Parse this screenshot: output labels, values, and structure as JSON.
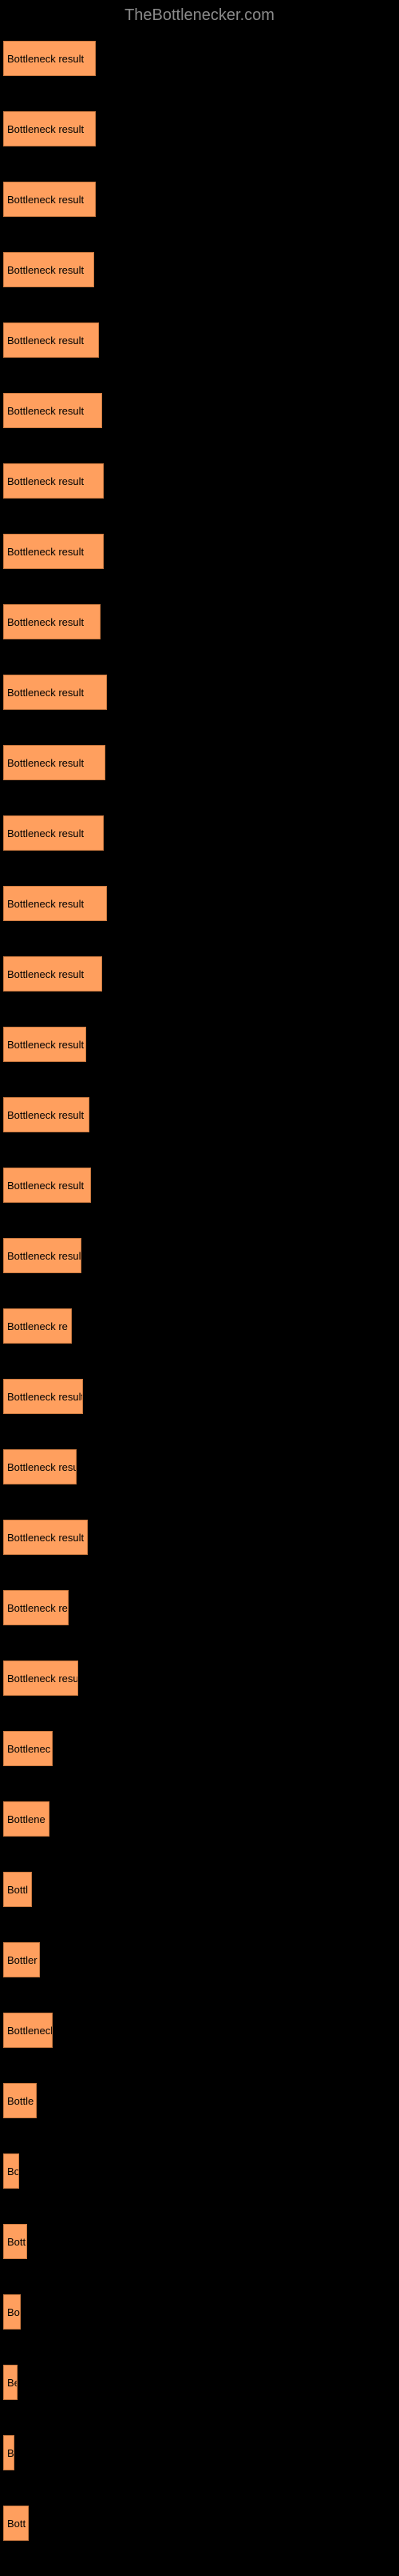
{
  "header": {
    "title": "TheBottlenecker.com"
  },
  "chart": {
    "type": "bar",
    "bar_color": "#ff9f5e",
    "bar_border_color": "#cc7a40",
    "background_color": "#000000",
    "label_color": "#000000",
    "label_fontsize": 13,
    "max_width": 500,
    "bars": [
      {
        "label": "Bottleneck result",
        "width": 116
      },
      {
        "label": "Bottleneck result",
        "width": 116
      },
      {
        "label": "Bottleneck result",
        "width": 116
      },
      {
        "label": "Bottleneck result",
        "width": 114
      },
      {
        "label": "Bottleneck result",
        "width": 120
      },
      {
        "label": "Bottleneck result",
        "width": 124
      },
      {
        "label": "Bottleneck result",
        "width": 126
      },
      {
        "label": "Bottleneck result",
        "width": 126
      },
      {
        "label": "Bottleneck result",
        "width": 122
      },
      {
        "label": "Bottleneck result",
        "width": 130
      },
      {
        "label": "Bottleneck result",
        "width": 128
      },
      {
        "label": "Bottleneck result",
        "width": 126
      },
      {
        "label": "Bottleneck result",
        "width": 130
      },
      {
        "label": "Bottleneck result",
        "width": 124
      },
      {
        "label": "Bottleneck result",
        "width": 104
      },
      {
        "label": "Bottleneck result",
        "width": 108
      },
      {
        "label": "Bottleneck result",
        "width": 110
      },
      {
        "label": "Bottleneck result",
        "width": 98
      },
      {
        "label": "Bottleneck re",
        "width": 86
      },
      {
        "label": "Bottleneck result",
        "width": 100
      },
      {
        "label": "Bottleneck resu",
        "width": 92
      },
      {
        "label": "Bottleneck result",
        "width": 106
      },
      {
        "label": "Bottleneck re",
        "width": 82
      },
      {
        "label": "Bottleneck resu",
        "width": 94
      },
      {
        "label": "Bottlenec",
        "width": 62
      },
      {
        "label": "Bottlene",
        "width": 58
      },
      {
        "label": "Bottl",
        "width": 36
      },
      {
        "label": "Bottler",
        "width": 46
      },
      {
        "label": "Bottleneck",
        "width": 62
      },
      {
        "label": "Bottle",
        "width": 42
      },
      {
        "label": "Bo",
        "width": 20
      },
      {
        "label": "Bott",
        "width": 30
      },
      {
        "label": "Bo",
        "width": 22
      },
      {
        "label": "Be",
        "width": 18
      },
      {
        "label": "B",
        "width": 14
      },
      {
        "label": "Bott",
        "width": 32
      }
    ]
  }
}
